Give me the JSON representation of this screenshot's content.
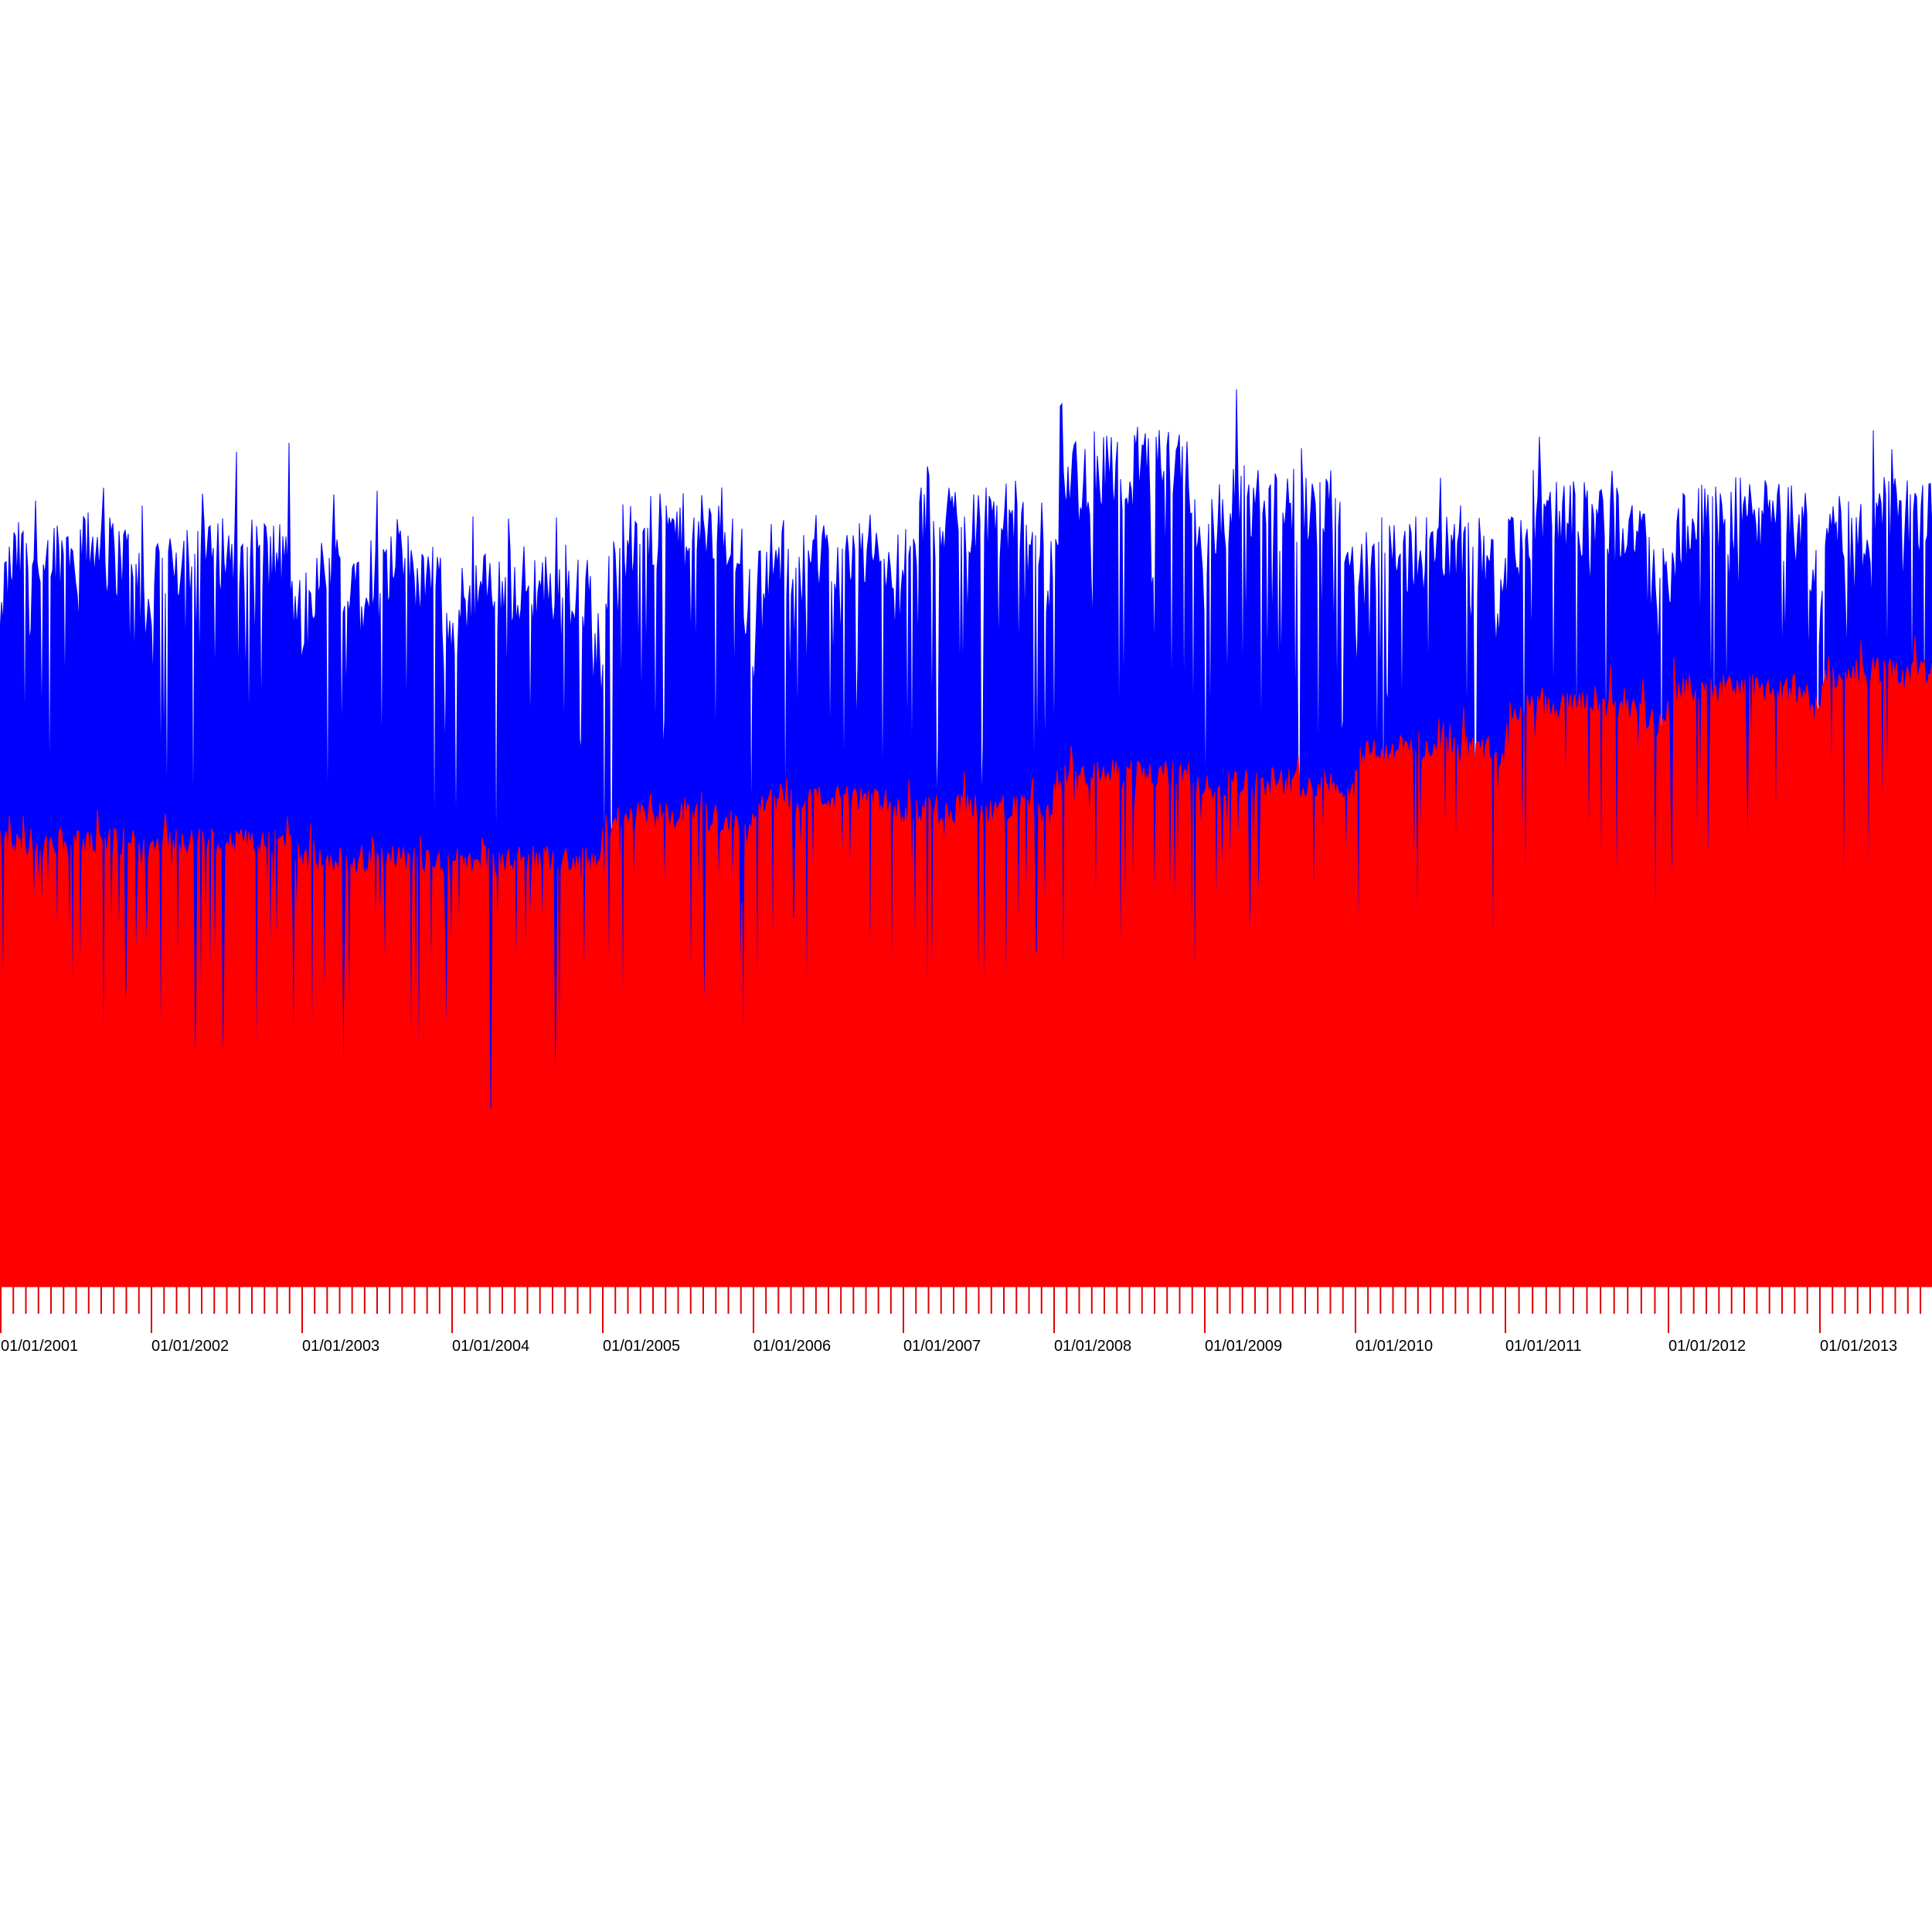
{
  "chart_data": {
    "type": "area",
    "title": "",
    "xlabel": "",
    "ylabel": "",
    "grid": false,
    "legend": "none",
    "x_tick_labels": [
      "01/01/2001",
      "01/01/2002",
      "01/01/2003",
      "01/01/2004",
      "01/01/2005",
      "01/01/2006",
      "01/01/2007",
      "01/01/2008",
      "01/01/2009",
      "01/01/2010",
      "01/01/2011",
      "01/01/2012",
      "01/01/2013"
    ],
    "x_range": [
      "2001-01-01",
      "2013-10-25"
    ],
    "minor_ticks_per_year": 12,
    "y_axis_shown": false,
    "series": [
      {
        "color": "#0000ff",
        "yearly_peak_profile": [
          {
            "year": 2001,
            "peak": 0.86,
            "base": 0.62
          },
          {
            "year": 2002,
            "peak": 0.86,
            "base": 0.62
          },
          {
            "year": 2003,
            "peak": 0.84,
            "base": 0.6
          },
          {
            "year": 2004,
            "peak": 0.82,
            "base": 0.58
          },
          {
            "year": 2005,
            "peak": 0.88,
            "base": 0.62
          },
          {
            "year": 2006,
            "peak": 0.86,
            "base": 0.62
          },
          {
            "year": 2007,
            "peak": 0.9,
            "base": 0.66
          },
          {
            "year": 2008,
            "peak": 0.96,
            "base": 0.7
          },
          {
            "year": 2009,
            "peak": 0.92,
            "base": 0.66
          },
          {
            "year": 2010,
            "peak": 0.86,
            "base": 0.62
          },
          {
            "year": 2011,
            "peak": 0.9,
            "base": 0.66
          },
          {
            "year": 2012,
            "peak": 0.9,
            "base": 0.66
          },
          {
            "year": 2013,
            "peak": 0.9,
            "base": 0.66
          }
        ]
      },
      {
        "color": "#ff0000",
        "yearly_peak_profile": [
          {
            "year": 2001,
            "peak": 0.52,
            "base": 0.5
          },
          {
            "year": 2002,
            "peak": 0.52,
            "base": 0.5
          },
          {
            "year": 2003,
            "peak": 0.5,
            "base": 0.48
          },
          {
            "year": 2004,
            "peak": 0.5,
            "base": 0.48
          },
          {
            "year": 2005,
            "peak": 0.55,
            "base": 0.49
          },
          {
            "year": 2006,
            "peak": 0.57,
            "base": 0.52
          },
          {
            "year": 2007,
            "peak": 0.56,
            "base": 0.52
          },
          {
            "year": 2008,
            "peak": 0.6,
            "base": 0.54
          },
          {
            "year": 2009,
            "peak": 0.59,
            "base": 0.56
          },
          {
            "year": 2010,
            "peak": 0.63,
            "base": 0.58
          },
          {
            "year": 2011,
            "peak": 0.68,
            "base": 0.61
          },
          {
            "year": 2012,
            "peak": 0.7,
            "base": 0.63
          },
          {
            "year": 2013,
            "peak": 0.72,
            "base": 0.64
          }
        ]
      }
    ]
  }
}
